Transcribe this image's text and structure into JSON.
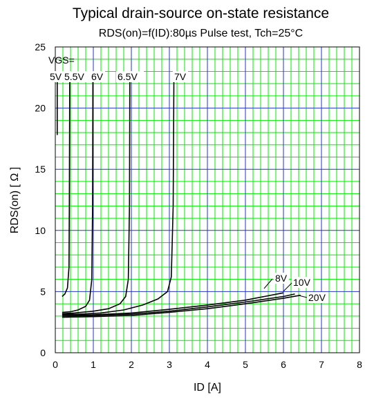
{
  "chart_data": {
    "type": "line",
    "title": "Typical drain-source on-state resistance",
    "subtitle": "RDS(on)=f(ID):80µs Pulse test, Tch=25°C",
    "xlabel": "ID [A]",
    "ylabel": "RDS(on) [ Ω ]",
    "xlim": [
      0,
      8
    ],
    "ylim": [
      0,
      25
    ],
    "xticks": [
      "0",
      "1",
      "2",
      "3",
      "4",
      "5",
      "6",
      "7",
      "8"
    ],
    "yticks": [
      "0",
      "5",
      "10",
      "15",
      "20",
      "25"
    ],
    "grid": true,
    "legend_header": "VGS=",
    "colors": {
      "minor_grid": "#00ee00",
      "major_grid": "#2233cc",
      "curve": "#000000",
      "axis": "#000000"
    },
    "series": [
      {
        "name": "5V",
        "points": [
          [
            0.05,
            17.8
          ],
          [
            0.05,
            23.0
          ]
        ]
      },
      {
        "name": "5.5V",
        "points": [
          [
            0.18,
            4.6
          ],
          [
            0.25,
            4.8
          ],
          [
            0.32,
            5.3
          ],
          [
            0.36,
            7.0
          ],
          [
            0.37,
            12.0
          ],
          [
            0.38,
            23.0
          ]
        ]
      },
      {
        "name": "6V",
        "points": [
          [
            0.18,
            3.3
          ],
          [
            0.4,
            3.35
          ],
          [
            0.6,
            3.5
          ],
          [
            0.8,
            3.8
          ],
          [
            0.9,
            4.3
          ],
          [
            0.96,
            6.0
          ],
          [
            0.98,
            12.0
          ],
          [
            0.99,
            23.0
          ]
        ]
      },
      {
        "name": "6.5V",
        "points": [
          [
            0.18,
            3.2
          ],
          [
            0.5,
            3.25
          ],
          [
            1.0,
            3.4
          ],
          [
            1.4,
            3.6
          ],
          [
            1.7,
            4.0
          ],
          [
            1.85,
            4.6
          ],
          [
            1.92,
            6.0
          ],
          [
            1.95,
            12.0
          ],
          [
            1.96,
            23.0
          ]
        ]
      },
      {
        "name": "7V",
        "points": [
          [
            0.18,
            3.15
          ],
          [
            0.6,
            3.15
          ],
          [
            1.2,
            3.25
          ],
          [
            1.8,
            3.5
          ],
          [
            2.3,
            3.9
          ],
          [
            2.7,
            4.4
          ],
          [
            2.95,
            5.0
          ],
          [
            3.05,
            6.2
          ],
          [
            3.1,
            12.0
          ],
          [
            3.12,
            23.0
          ]
        ]
      },
      {
        "name": "8V",
        "points": [
          [
            0.18,
            3.1
          ],
          [
            1.0,
            3.1
          ],
          [
            2.0,
            3.25
          ],
          [
            3.0,
            3.55
          ],
          [
            4.0,
            3.9
          ],
          [
            5.0,
            4.3
          ],
          [
            5.5,
            4.6
          ],
          [
            6.0,
            4.9
          ]
        ]
      },
      {
        "name": "10V",
        "points": [
          [
            0.18,
            3.0
          ],
          [
            1.0,
            3.05
          ],
          [
            2.0,
            3.15
          ],
          [
            3.0,
            3.4
          ],
          [
            4.0,
            3.75
          ],
          [
            5.0,
            4.15
          ],
          [
            6.0,
            4.6
          ],
          [
            6.3,
            4.8
          ]
        ]
      },
      {
        "name": "20V",
        "points": [
          [
            0.18,
            2.9
          ],
          [
            1.0,
            2.95
          ],
          [
            2.0,
            3.05
          ],
          [
            3.0,
            3.3
          ],
          [
            4.0,
            3.6
          ],
          [
            5.0,
            4.0
          ],
          [
            6.0,
            4.45
          ],
          [
            6.45,
            4.7
          ]
        ]
      }
    ]
  }
}
